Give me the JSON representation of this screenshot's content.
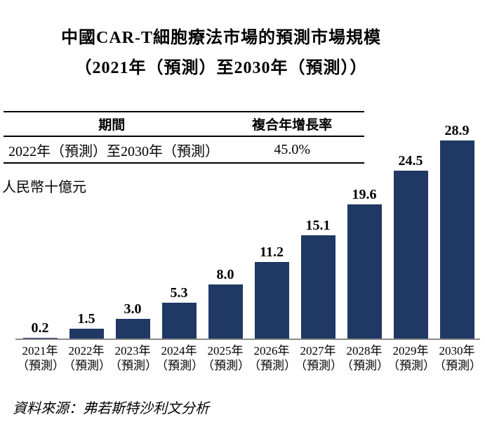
{
  "page": {
    "title_line1": "中國CAR-T細胞療法市場的預測市場規模",
    "title_line2": "（2021年（預測）至2030年（預測））",
    "unit_label": "人民幣十億元",
    "source": "資料來源：弗若斯特沙利文分析"
  },
  "cagr_table": {
    "col_period_header": "期間",
    "col_cagr_header": "複合年增長率",
    "rows": [
      {
        "period": "2022年（預測）至2030年（預測）",
        "cagr": "45.0%"
      }
    ]
  },
  "chart_data": {
    "type": "bar",
    "title": "中國CAR-T細胞療法市場的預測市場規模（2021年（預測）至2030年（預測））",
    "ylabel": "人民幣十億元",
    "ylim": [
      0,
      30
    ],
    "grid": false,
    "legend": "none",
    "bar_color": "#1f3864",
    "axis_color": "#8a8a8a",
    "categories": [
      "2021年（預測）",
      "2022年（預測）",
      "2023年（預測）",
      "2024年（預測）",
      "2025年（預測）",
      "2026年（預測）",
      "2027年（預測）",
      "2028年（預測）",
      "2029年（預測）",
      "2030年（預測）"
    ],
    "values": [
      0.2,
      1.5,
      3.0,
      5.3,
      8.0,
      11.2,
      15.1,
      19.6,
      24.5,
      28.9
    ],
    "data_labels": [
      "0.2",
      "1.5",
      "3.0",
      "5.3",
      "8.0",
      "11.2",
      "15.1",
      "19.6",
      "24.5",
      "28.9"
    ],
    "cagr_annotation": {
      "period": "2022年（預測）至2030年（預測）",
      "value": "45.0%"
    }
  }
}
